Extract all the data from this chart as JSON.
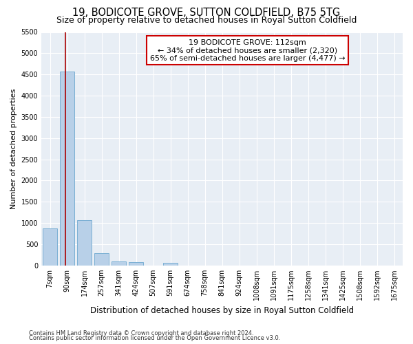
{
  "title1": "19, BODICOTE GROVE, SUTTON COLDFIELD, B75 5TG",
  "title2": "Size of property relative to detached houses in Royal Sutton Coldfield",
  "xlabel": "Distribution of detached houses by size in Royal Sutton Coldfield",
  "ylabel": "Number of detached properties",
  "footnote1": "Contains HM Land Registry data © Crown copyright and database right 2024.",
  "footnote2": "Contains public sector information licensed under the Open Government Licence v3.0.",
  "bin_labels": [
    "7sqm",
    "90sqm",
    "174sqm",
    "257sqm",
    "341sqm",
    "424sqm",
    "507sqm",
    "591sqm",
    "674sqm",
    "758sqm",
    "841sqm",
    "924sqm",
    "1008sqm",
    "1091sqm",
    "1175sqm",
    "1258sqm",
    "1341sqm",
    "1425sqm",
    "1508sqm",
    "1592sqm",
    "1675sqm"
  ],
  "bar_values": [
    880,
    4560,
    1060,
    285,
    90,
    80,
    0,
    55,
    0,
    0,
    0,
    0,
    0,
    0,
    0,
    0,
    0,
    0,
    0,
    0,
    0
  ],
  "bar_color": "#b8d0e8",
  "bar_edge_color": "#7aafd4",
  "property_line_x": 1,
  "property_line_color": "#aa0000",
  "ylim_max": 5500,
  "yticks": [
    0,
    500,
    1000,
    1500,
    2000,
    2500,
    3000,
    3500,
    4000,
    4500,
    5000,
    5500
  ],
  "annotation_line1": "19 BODICOTE GROVE: 112sqm",
  "annotation_line2": "← 34% of detached houses are smaller (2,320)",
  "annotation_line3": "65% of semi-detached houses are larger (4,477) →",
  "annotation_box_color": "#ffffff",
  "annotation_box_edge_color": "#cc0000",
  "plot_bg_color": "#e8eef5",
  "grid_color": "#ffffff",
  "title1_fontsize": 10.5,
  "title2_fontsize": 9,
  "ylabel_fontsize": 8,
  "xlabel_fontsize": 8.5,
  "annotation_fontsize": 8,
  "tick_fontsize": 7,
  "footnote_fontsize": 6
}
